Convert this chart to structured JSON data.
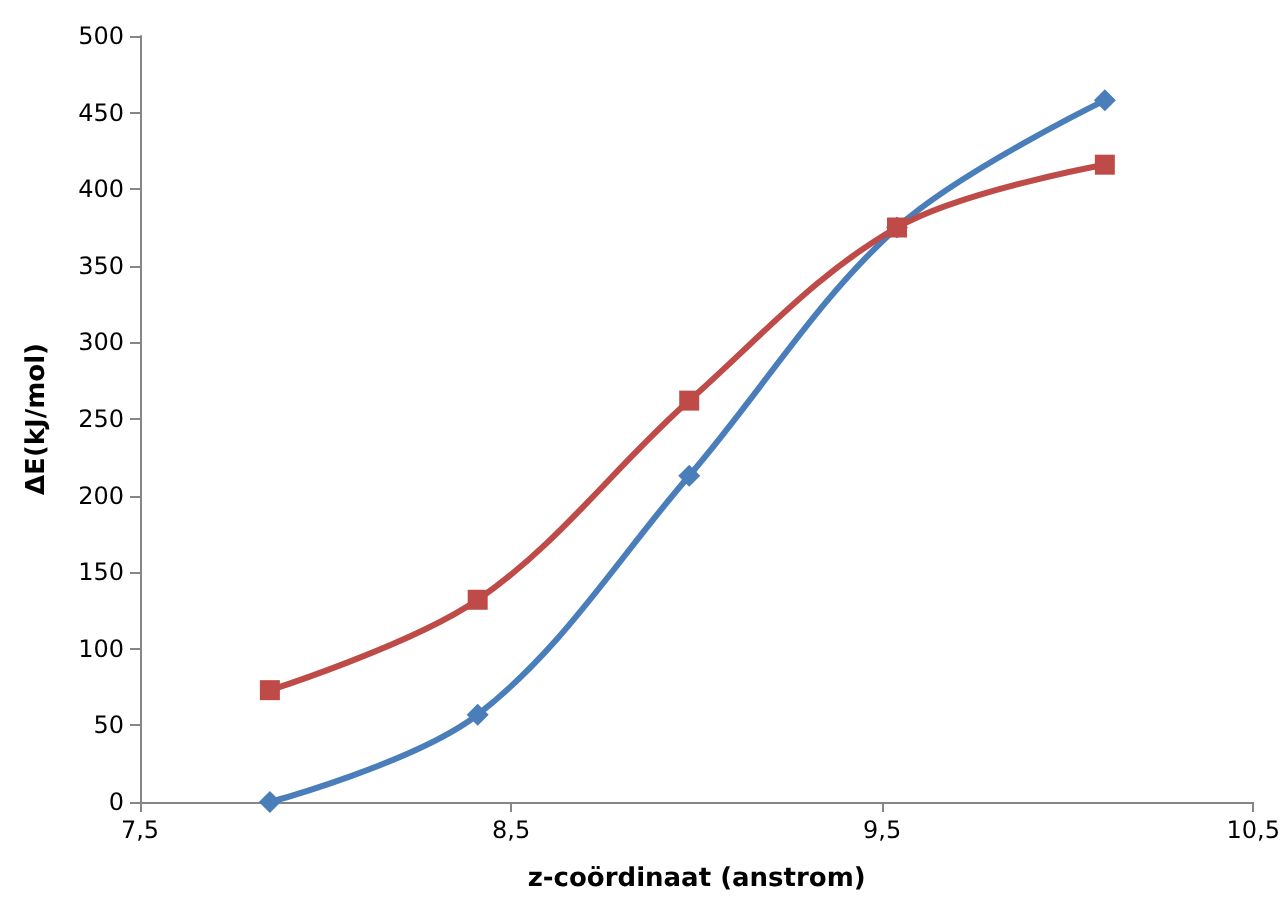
{
  "chart_data": {
    "type": "line",
    "xlabel": "z-coördinaat (anstrom)",
    "ylabel": "ΔE(kJ/mol)",
    "xlim": [
      7.5,
      10.5
    ],
    "xticks": [
      {
        "value": 7.5,
        "label": "7,5"
      },
      {
        "value": 8.5,
        "label": "8,5"
      },
      {
        "value": 9.5,
        "label": "9,5"
      },
      {
        "value": 10.5,
        "label": "10,5"
      }
    ],
    "ylim": [
      0,
      500
    ],
    "yticks": [
      0,
      50,
      100,
      150,
      200,
      250,
      300,
      350,
      400,
      450,
      500
    ],
    "grid": false,
    "series": [
      {
        "color": "#4a7ebb",
        "marker": "diamond",
        "x": [
          7.85,
          8.41,
          8.98,
          9.54,
          10.1
        ],
        "values": [
          0,
          57,
          213,
          375,
          458
        ]
      },
      {
        "color": "#be4b48",
        "marker": "square",
        "x": [
          7.85,
          8.41,
          8.98,
          9.54,
          10.1
        ],
        "values": [
          73,
          132,
          262,
          375,
          416
        ]
      }
    ]
  }
}
